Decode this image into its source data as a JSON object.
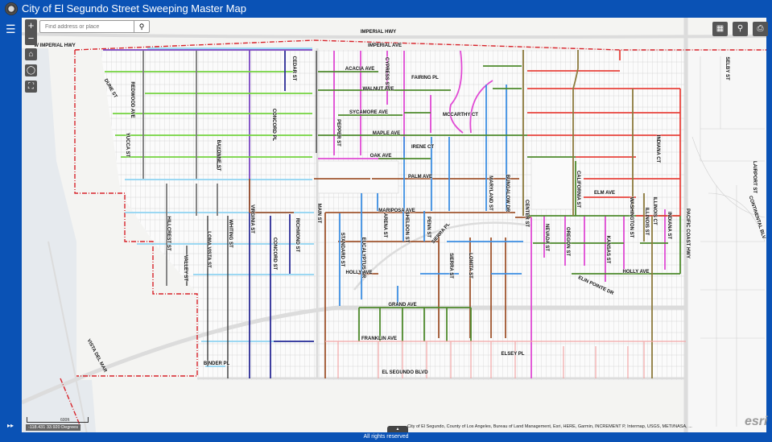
{
  "header": {
    "title": "City of El Segundo Street Sweeping Master Map"
  },
  "search": {
    "placeholder": "Find address or place",
    "value": ""
  },
  "controls": {
    "zoom_in": "+",
    "zoom_out": "−"
  },
  "icons": {
    "logo": "city-seal",
    "layers": "layers-icon",
    "home": "home-icon",
    "locate": "locate-icon",
    "fullscreen": "fullscreen-icon",
    "basemap": "basemap-gallery-icon",
    "share": "share-icon",
    "print": "print-icon",
    "search": "search-icon"
  },
  "map": {
    "labels": [
      "IMPERIAL HWY",
      "W IMPERIAL HWY",
      "IMPERIAL AVE",
      "DUNE ST",
      "REDWOOD AVE",
      "YUCCA ST",
      "BAYONNE ST",
      "CONCORD PL",
      "CEDAR ST",
      "ACACIA AVE",
      "CYPRESS ST",
      "FAIRING PL",
      "WALNUT AVE",
      "SYCAMORE AVE",
      "MCCARTHY CT",
      "MAPLE AVE",
      "PEPPER ST",
      "IRENE CT",
      "OAK AVE",
      "PALM AVE",
      "MARYLAND ST",
      "BUNGALOW DR",
      "CENTER ST",
      "CALIFORNIA ST",
      "INDIANA CT",
      "ELM AVE",
      "ILLINOIS CT",
      "WASHINGTON ST",
      "ILLINOIS ST",
      "INDIANA ST",
      "PACIFIC COAST HWY",
      "SELBY ST",
      "LAIRPORT ST",
      "CONTINENTAL BLV",
      "NEVADA ST",
      "OREGON ST",
      "KANSAS ST",
      "HOLLY AVE",
      "ELIN POINTE DR",
      "MARIPOSA AVE",
      "ARENA ST",
      "SHELDON ST",
      "PENN ST",
      "SIERRA PL",
      "SIERRA ST",
      "LOMITA ST",
      "EUCALYPTUS DR",
      "STANDARD ST",
      "HOLLY AVE",
      "GRAND AVE",
      "FRANKLIN AVE",
      "ELSEY PL",
      "EL SEGUNDO BLVD",
      "MAIN ST",
      "VIRGINIA ST",
      "RICHMOND ST",
      "CONCORD ST",
      "HILLCREST ST",
      "LOMA VISTA ST",
      "WHITING ST",
      "VALLEY ST",
      "BINDER PL",
      "VISTA DEL MAR"
    ],
    "route_colors": {
      "light_green": "#74d43f",
      "dark_green": "#4e8a2c",
      "light_blue": "#8fd4f2",
      "purple": "#7a45c2",
      "navy": "#2c2c96",
      "gray": "#7a7a7a",
      "black": "#222222",
      "magenta": "#e04ad4",
      "blue": "#3d8fe3",
      "brown": "#a0552f",
      "red": "#e8443c",
      "olive": "#8c7a3c",
      "pink": "#f2a6a6",
      "boundary": "#d8232a"
    }
  },
  "scale": {
    "label": "600ft"
  },
  "coords": {
    "text": "-118.431 33.920 Degrees"
  },
  "attribution": "City of El Segundo, County of Los Angeles, Bureau of Land Management, Esri, HERE, Garmin, INCREMENT P, Intermap, USGS, METI/NASA, ...",
  "esri_logo": "esri",
  "footer": {
    "text": "All rights reserved"
  }
}
